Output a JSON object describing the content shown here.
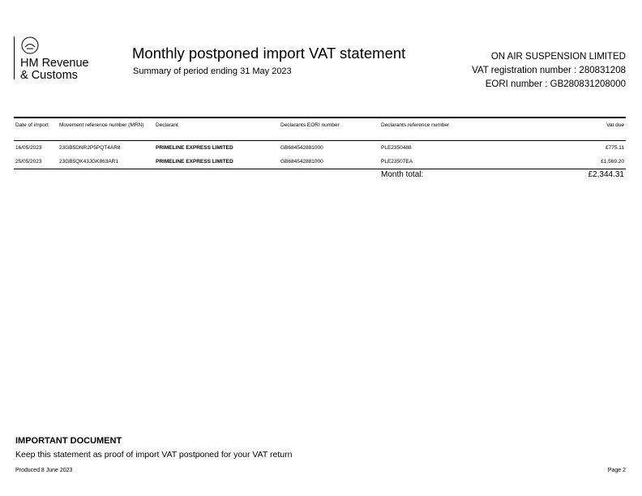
{
  "logo": {
    "line1": "HM Revenue",
    "line2": "& Customs"
  },
  "header": {
    "title": "Monthly postponed import VAT statement",
    "subtitle": "Summary of period ending 31 May 2023"
  },
  "company": {
    "name": "ON AIR SUSPENSION LIMITED",
    "vat": "VAT registration number : 280831208",
    "eori": "EORI number : GB280831208000"
  },
  "table": {
    "headers": [
      "Date of import",
      "Movement reference number (MRN)",
      "Declarant",
      "Declarants EORI number",
      "Declarants reference number",
      "Vat due"
    ],
    "rows": [
      [
        "16/05/2023",
        "23GB5DNR2P5PQT4AR8",
        "PRIMELINE EXPRESS LIMITED",
        "GB684542881000",
        "PLE2350488",
        "£775.11"
      ],
      [
        "25/05/2023",
        "23GB5QK43JGK863AR1",
        "PRIMELINE EXPRESS LIMITED",
        "GB684542881000",
        "PLE23507EA",
        "£1,569.20"
      ]
    ],
    "total_label": "Month total:",
    "total_value": "£2,344.31"
  },
  "footer": {
    "important": "IMPORTANT DOCUMENT",
    "keep": "Keep this statement as proof of import VAT postponed for your VAT return",
    "produced": "Produced 8 June 2023",
    "page": "Page 2"
  }
}
